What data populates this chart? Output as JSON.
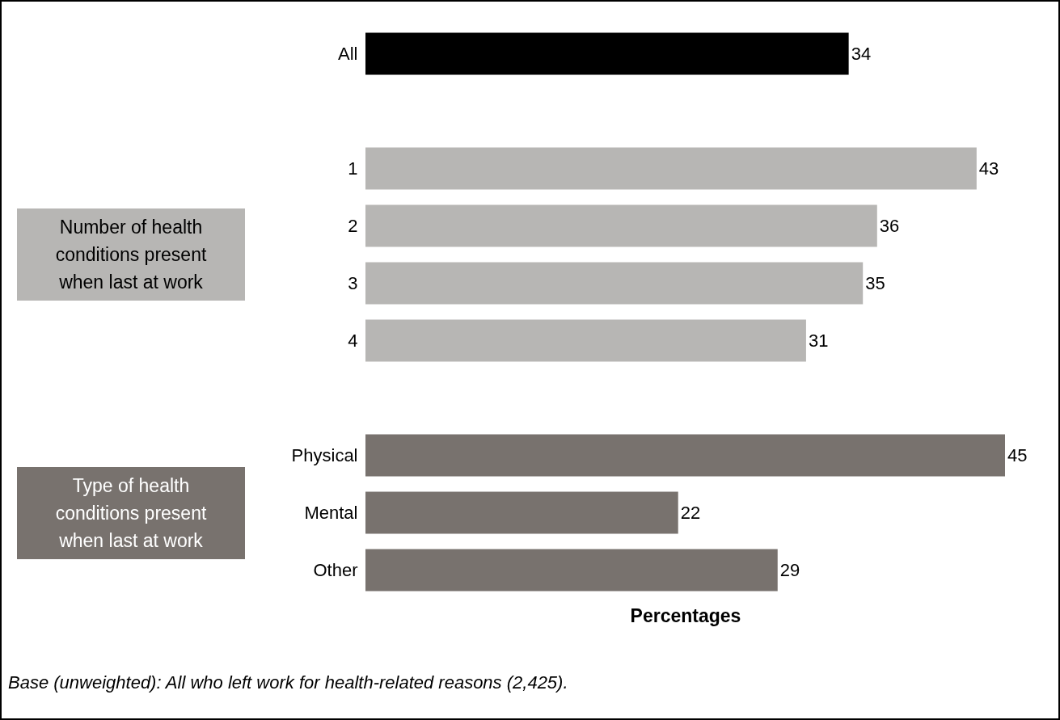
{
  "chart_data": {
    "type": "bar",
    "orientation": "horizontal",
    "categories": [
      "All",
      null,
      "1",
      "2",
      "3",
      "4",
      null,
      "Physical",
      "Mental",
      "Other"
    ],
    "values": [
      34,
      null,
      43,
      36,
      35,
      31,
      null,
      45,
      22,
      29
    ],
    "colors": [
      "#000000",
      null,
      "#b7b6b4",
      "#b7b6b4",
      "#b7b6b4",
      "#b7b6b4",
      null,
      "#78726e",
      "#78726e",
      "#78726e"
    ],
    "data_labels": true,
    "xlabel": "Percentages",
    "annotations": [
      "Number of health conditions present when last at work",
      "Type of health conditions present when last at work",
      "Base (unweighted): All who left work for health-related reasons (2,425)."
    ]
  }
}
